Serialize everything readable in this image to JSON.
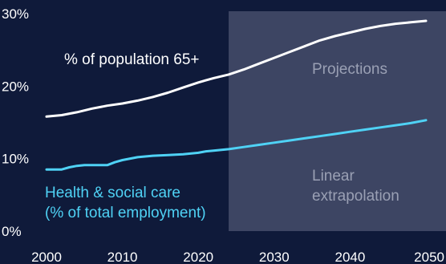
{
  "chart_data": {
    "type": "line",
    "xlim": [
      2000,
      2050
    ],
    "ylim": [
      0,
      30
    ],
    "x_ticks": [
      "2000",
      "2010",
      "2020",
      "2030",
      "2040",
      "2050"
    ],
    "y_ticks": [
      "0%",
      "10%",
      "20%",
      "30%"
    ],
    "grid": false,
    "projection_start": 2024,
    "series": [
      {
        "name": "% of population 65+",
        "color": "#ffffff",
        "x": [
          2000,
          2002,
          2004,
          2006,
          2008,
          2010,
          2012,
          2014,
          2016,
          2018,
          2020,
          2022,
          2024,
          2026,
          2028,
          2030,
          2032,
          2034,
          2036,
          2038,
          2040,
          2042,
          2044,
          2046,
          2048,
          2050
        ],
        "values": [
          15.8,
          16.0,
          16.4,
          16.9,
          17.3,
          17.6,
          18.0,
          18.5,
          19.1,
          19.8,
          20.5,
          21.1,
          21.6,
          22.3,
          23.1,
          23.9,
          24.7,
          25.5,
          26.3,
          26.9,
          27.4,
          27.9,
          28.3,
          28.6,
          28.8,
          29.0
        ]
      },
      {
        "name": "Health & social care (% of total employment)",
        "color": "#4fd2f5",
        "x": [
          2000,
          2002,
          2003,
          2004,
          2005,
          2006,
          2007,
          2008,
          2009,
          2010,
          2012,
          2014,
          2016,
          2018,
          2020,
          2021,
          2022,
          2024,
          2026,
          2028,
          2030,
          2032,
          2034,
          2036,
          2038,
          2040,
          2042,
          2044,
          2046,
          2048,
          2050
        ],
        "values": [
          8.5,
          8.5,
          8.8,
          9.0,
          9.1,
          9.1,
          9.1,
          9.1,
          9.5,
          9.8,
          10.2,
          10.4,
          10.5,
          10.6,
          10.8,
          11.0,
          11.1,
          11.3,
          11.6,
          11.9,
          12.2,
          12.5,
          12.8,
          13.1,
          13.4,
          13.7,
          14.0,
          14.3,
          14.6,
          14.9,
          15.3
        ]
      }
    ],
    "annotations": {
      "population_label": "% of population 65+",
      "health_label_line1": "Health & social care",
      "health_label_line2": "(% of total employment)",
      "projections_label": "Projections",
      "linear_label_line1": "Linear",
      "linear_label_line2": "extrapolation"
    },
    "colors": {
      "background": "#0f1a3a",
      "projection_band": "#3d4563",
      "projection_text": "#9aa0b4"
    }
  }
}
